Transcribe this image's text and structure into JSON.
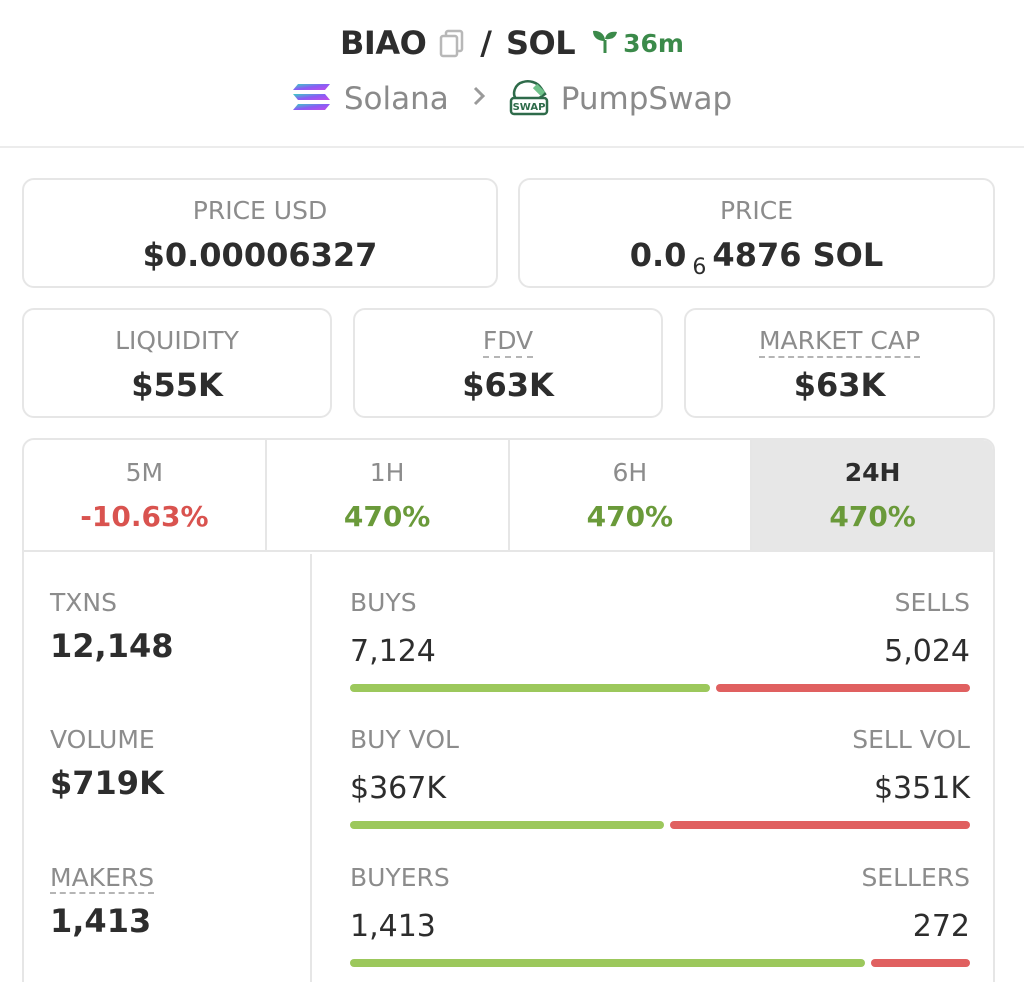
{
  "header": {
    "base_token": "BIAO",
    "separator": "/",
    "quote_token": "SOL",
    "age": "36m",
    "chain": "Solana",
    "dex": "PumpSwap",
    "dex_badge": "SWAP"
  },
  "stats": {
    "price_usd_label": "PRICE USD",
    "price_usd_value": "$0.00006327",
    "price_label": "PRICE",
    "price_prefix": "0.0",
    "price_zeros": "6",
    "price_suffix": "4876 SOL",
    "liquidity_label": "LIQUIDITY",
    "liquidity_value": "$55K",
    "fdv_label": "FDV",
    "fdv_value": "$63K",
    "mcap_label": "MARKET CAP",
    "mcap_value": "$63K"
  },
  "tabs": [
    {
      "label": "5M",
      "value": "-10.63%"
    },
    {
      "label": "1H",
      "value": "470%"
    },
    {
      "label": "6H",
      "value": "470%"
    },
    {
      "label": "24H",
      "value": "470%"
    }
  ],
  "metrics": {
    "txns_label": "TXNS",
    "txns_value": "12,148",
    "volume_label": "VOLUME",
    "volume_value": "$719K",
    "makers_label": "MAKERS",
    "makers_value": "1,413"
  },
  "splits": [
    {
      "left_label": "BUYS",
      "left_value": "7,124",
      "right_label": "SELLS",
      "right_value": "5,024",
      "buy_fraction": 0.586
    },
    {
      "left_label": "BUY VOL",
      "left_value": "$367K",
      "right_label": "SELL VOL",
      "right_value": "$351K",
      "buy_fraction": 0.511
    },
    {
      "left_label": "BUYERS",
      "left_value": "1,413",
      "right_label": "SELLERS",
      "right_value": "272",
      "buy_fraction": 0.839
    }
  ],
  "colors": {
    "positive": "#6a9a3a",
    "negative": "#d9534f",
    "buy_bar": "#9cc85c",
    "sell_bar": "#e06060",
    "age_green": "#3b8a4a"
  },
  "icons": {
    "copy": "copy-icon",
    "age": "seedling-icon",
    "chain": "solana-logo-icon",
    "dex": "pumpswap-logo-icon",
    "chevron": "chevron-right-icon"
  }
}
